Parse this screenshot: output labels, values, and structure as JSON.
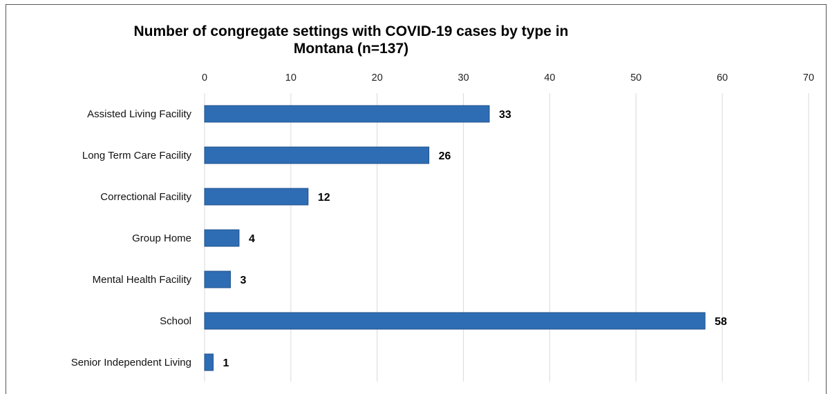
{
  "chart_data": {
    "type": "bar",
    "orientation": "horizontal",
    "title": "Number of congregate settings with COVID-19 cases by type in Montana (n=137)",
    "title_lines": [
      "Number of congregate settings with COVID-19 cases by type in",
      "Montana (n=137)"
    ],
    "categories": [
      "Assisted Living Facility",
      "Long Term Care Facility",
      "Correctional Facility",
      "Group Home",
      "Mental Health Facility",
      "School",
      "Senior Independent Living"
    ],
    "values": [
      33,
      26,
      12,
      4,
      3,
      58,
      1
    ],
    "data_labels": [
      "33",
      "26",
      "12",
      "4",
      "3",
      "58",
      "1"
    ],
    "xlim": [
      0,
      70
    ],
    "x_ticks": [
      "0",
      "10",
      "20",
      "30",
      "40",
      "50",
      "60",
      "70"
    ],
    "x_tick_values": [
      0,
      10,
      20,
      30,
      40,
      50,
      60,
      70
    ],
    "x_axis_position": "top",
    "xlabel": "",
    "ylabel": "",
    "grid": true,
    "legend": false,
    "colors": {
      "bar": "#2e6db4",
      "bar_edge": "#1f4f8a",
      "grid": "#d9d9d9"
    }
  }
}
